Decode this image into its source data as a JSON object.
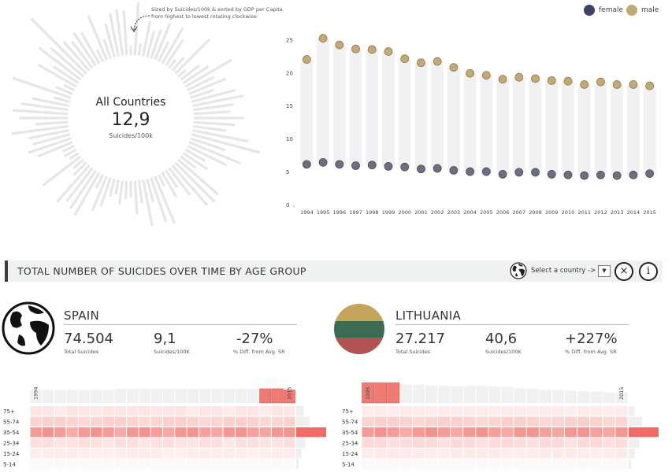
{
  "overview": {
    "label": "All Countries",
    "value": "12,9",
    "unit": "Suicides/100k",
    "note_line1": "Sized by Suicides/100k & sorted by GDP per Capita",
    "note_line2": "from highest to lowest rotating clockwise"
  },
  "legend": {
    "female_label": "female",
    "male_label": "male",
    "female_color": "#3d4260",
    "male_color": "#c2aa76"
  },
  "chart_data": {
    "type": "scatter",
    "x": [
      "1994",
      "1995",
      "1996",
      "1997",
      "1998",
      "1999",
      "2000",
      "2001",
      "2002",
      "2003",
      "2004",
      "2005",
      "2006",
      "2007",
      "2008",
      "2009",
      "2010",
      "2011",
      "2012",
      "2013",
      "2014",
      "2015"
    ],
    "series": [
      {
        "name": "female",
        "values": [
          6.1,
          6.4,
          6.1,
          5.9,
          6.0,
          5.8,
          5.7,
          5.4,
          5.5,
          5.2,
          5.0,
          5.0,
          4.6,
          4.9,
          4.9,
          4.6,
          4.5,
          4.4,
          4.5,
          4.4,
          4.5,
          4.7
        ]
      },
      {
        "name": "male",
        "values": [
          22.0,
          25.2,
          24.2,
          23.6,
          23.5,
          23.2,
          22.1,
          21.5,
          21.7,
          20.8,
          19.9,
          19.6,
          19.0,
          19.3,
          19.1,
          18.8,
          18.7,
          18.2,
          18.6,
          18.2,
          18.2,
          18.0
        ]
      }
    ],
    "yticks": [
      "0",
      "5",
      "10",
      "15",
      "20",
      "25"
    ],
    "ylim": [
      0,
      26
    ]
  },
  "section": {
    "title": "TOTAL NUMBER OF SUICIDES OVER TIME BY AGE GROUP",
    "select_label": "Select a country ->",
    "select_arrow": "▼",
    "close_symbol": "×",
    "info_symbol": "i"
  },
  "countries": [
    {
      "name": "SPAIN",
      "total": "74.504",
      "total_label": "Total Suicides",
      "rate": "9,1",
      "rate_label": "Suicides/100K",
      "diff": "-27%",
      "diff_label": "% Diff. from Avg. SR",
      "year_start": "1994",
      "year_end": "2015",
      "age_groups": [
        "75+",
        "55-74",
        "35-54",
        "25-34",
        "15-24",
        "5-14"
      ],
      "age_level": [
        0.25,
        0.45,
        1.0,
        0.3,
        0.18,
        0.02
      ],
      "top_bars": [
        0.55,
        0.55,
        0.55,
        0.55,
        0.55,
        0.55,
        0.55,
        0.6,
        0.6,
        0.6,
        0.6,
        0.6,
        0.6,
        0.6,
        0.6,
        0.6,
        0.6,
        0.6,
        0.6,
        0.6,
        0.6,
        0.55
      ],
      "highlight_years": [
        19,
        20,
        21
      ]
    },
    {
      "name": "LITHUANIA",
      "total": "27.217",
      "total_label": "Total Suicides",
      "rate": "40,6",
      "rate_label": "Suicides/100K",
      "diff": "+227%",
      "diff_label": "% Diff. from Avg. SR",
      "year_start": "1995",
      "year_end": "2015",
      "age_groups": [
        "75+",
        "55-74",
        "35-54",
        "25-34",
        "15-24",
        "5-14"
      ],
      "age_level": [
        0.2,
        0.45,
        1.0,
        0.35,
        0.2,
        0.02
      ],
      "top_bars": [
        0.85,
        0.85,
        0.85,
        0.78,
        0.78,
        0.74,
        0.72,
        0.7,
        0.72,
        0.72,
        0.7,
        0.68,
        0.62,
        0.6,
        0.55,
        0.55,
        0.52,
        0.5,
        0.48,
        0.45,
        0.45
      ],
      "highlight_years": [
        0,
        1,
        2
      ]
    }
  ]
}
